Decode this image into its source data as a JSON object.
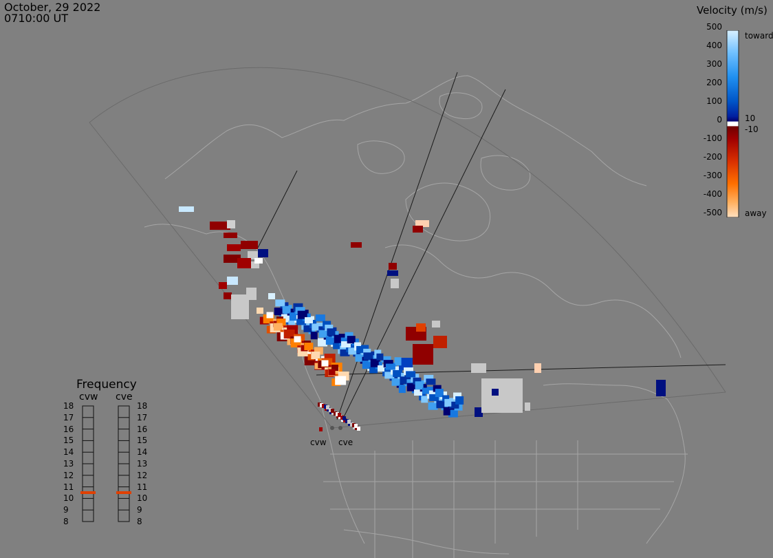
{
  "header": {
    "date": "October, 29 2022",
    "time": "0710:00 UT"
  },
  "legend": {
    "title": "Velocity (m/s)",
    "ticks": [
      "500",
      "400",
      "300",
      "200",
      "100",
      "0",
      "-100",
      "-200",
      "-300",
      "-400",
      "-500"
    ],
    "toward_label": "toward",
    "away_label": "away",
    "plus_threshold": "10",
    "minus_threshold": "-10",
    "colors": [
      "#ffd9b0",
      "#ffb060",
      "#ff8000",
      "#e05000",
      "#c02000",
      "#a00000",
      "#800000",
      "#000070",
      "#0030a0",
      "#0050c0",
      "#1878e0",
      "#40a0f0",
      "#80c8ff",
      "#d0ecff"
    ]
  },
  "frequency": {
    "title": "Frequency",
    "radars": [
      "cvw",
      "cve"
    ],
    "ticks": [
      "18",
      "17",
      "16",
      "15",
      "14",
      "13",
      "12",
      "11",
      "10",
      "9",
      "8"
    ],
    "values_mhz": [
      10.5,
      10.5
    ],
    "indicator_color": "#e04000"
  },
  "sites": {
    "west": "cvw",
    "east": "cve"
  },
  "map": {
    "land_outline_color": "#a8a8a8",
    "fov_outline_color": "#606060",
    "boresight_color": "#000000",
    "ground_scatter_color": "#c8c8c8"
  }
}
